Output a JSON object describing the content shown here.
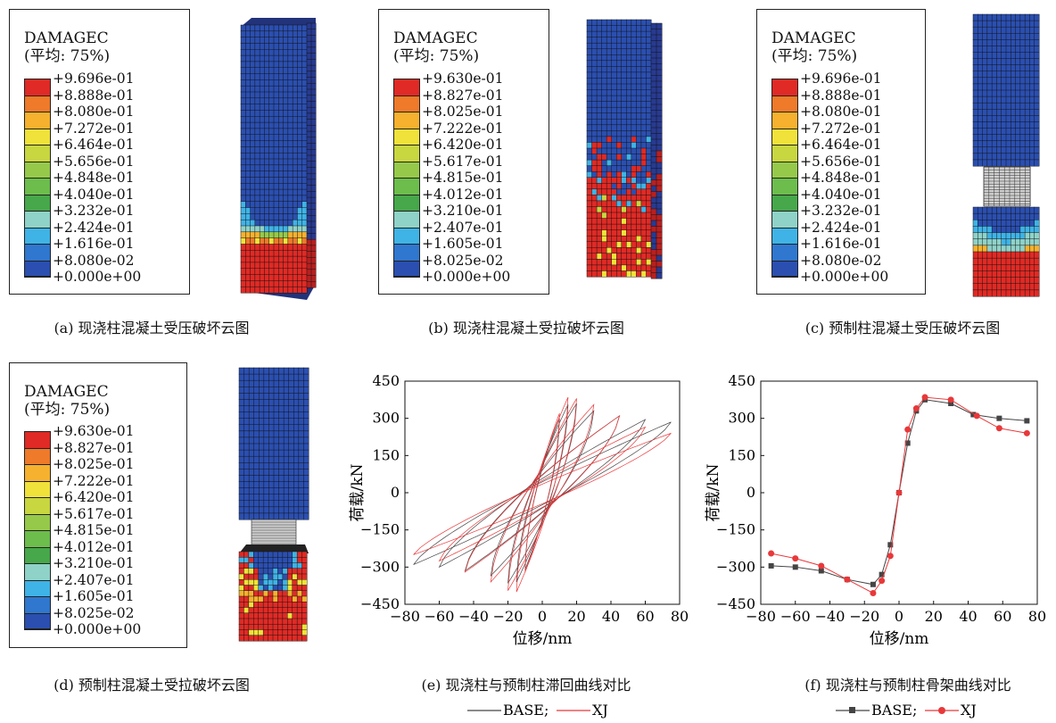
{
  "colors": {
    "contour": [
      "#2b4fb0",
      "#2f77cf",
      "#3fb3e6",
      "#8fd2c8",
      "#46a84a",
      "#6cbd4c",
      "#96c94a",
      "#c8d640",
      "#f0e23a",
      "#f6b12e",
      "#ee7a2a",
      "#e02a25"
    ],
    "series_base": "#444444",
    "series_xj": "#e8383a",
    "model_blue": "#3043a8",
    "model_red": "#d72a2a"
  },
  "panels": [
    {
      "legend_title": "DAMAGEC",
      "legend_subtitle": "(平均: 75%)",
      "ticks": [
        "+9.696e-01",
        "+8.888e-01",
        "+8.080e-01",
        "+7.272e-01",
        "+6.464e-01",
        "+5.656e-01",
        "+4.848e-01",
        "+4.040e-01",
        "+3.232e-01",
        "+2.424e-01",
        "+1.616e-01",
        "+8.080e-02",
        "+0.000e+00"
      ],
      "caption": "(a) 现浇柱混凝土受压破坏云图"
    },
    {
      "legend_title": "DAMAGEC",
      "legend_subtitle": "(平均: 75%)",
      "ticks": [
        "+9.630e-01",
        "+8.827e-01",
        "+8.025e-01",
        "+7.222e-01",
        "+6.420e-01",
        "+5.617e-01",
        "+4.815e-01",
        "+4.012e-01",
        "+3.210e-01",
        "+2.407e-01",
        "+1.605e-01",
        "+8.025e-02",
        "+0.000e+00"
      ],
      "caption": "(b) 现浇柱混凝土受拉破坏云图"
    },
    {
      "legend_title": "DAMAGEC",
      "legend_subtitle": "(平均: 75%)",
      "ticks": [
        "+9.696e-01",
        "+8.888e-01",
        "+8.080e-01",
        "+7.272e-01",
        "+6.464e-01",
        "+5.656e-01",
        "+4.848e-01",
        "+4.040e-01",
        "+3.232e-01",
        "+2.424e-01",
        "+1.616e-01",
        "+8.080e-02",
        "+0.000e+00"
      ],
      "caption": "(c) 预制柱混凝土受压破坏云图"
    },
    {
      "legend_title": "DAMAGEC",
      "legend_subtitle": "(平均: 75%)",
      "ticks": [
        "+9.630e-01",
        "+8.827e-01",
        "+8.025e-01",
        "+7.222e-01",
        "+6.420e-01",
        "+5.617e-01",
        "+4.815e-01",
        "+4.012e-01",
        "+3.210e-01",
        "+2.407e-01",
        "+1.605e-01",
        "+8.025e-02",
        "+0.000e+00"
      ],
      "caption": "(d) 预制柱混凝土受拉破坏云图"
    }
  ],
  "chart_data": [
    {
      "type": "line",
      "caption": "(e) 现浇柱与预制柱滞回曲线对比",
      "xlabel": "位移/nm",
      "ylabel": "荷载/kN",
      "xlim": [
        -80,
        80
      ],
      "ylim": [
        -450,
        450
      ],
      "xticks": [
        "−80",
        "−60",
        "−40",
        "−20",
        "0",
        "20",
        "40",
        "60",
        "80"
      ],
      "yticks": [
        "450",
        "300",
        "150",
        "0",
        "−150",
        "−300",
        "−450"
      ],
      "legend": [
        "BASE;",
        "XJ"
      ],
      "series": [
        {
          "name": "BASE",
          "loops": [
            {
              "amp_x": 10,
              "peak_y": 300,
              "min_y": -310
            },
            {
              "amp_x": 15,
              "peak_y": 355,
              "min_y": -360
            },
            {
              "amp_x": 20,
              "peak_y": 360,
              "min_y": -365
            },
            {
              "amp_x": 30,
              "peak_y": 330,
              "min_y": -335
            },
            {
              "amp_x": 45,
              "peak_y": 310,
              "min_y": -315
            },
            {
              "amp_x": 60,
              "peak_y": 295,
              "min_y": -300
            },
            {
              "amp_x": 75,
              "peak_y": 285,
              "min_y": -290
            }
          ]
        },
        {
          "name": "XJ",
          "loops": [
            {
              "amp_x": 10,
              "peak_y": 320,
              "min_y": -320
            },
            {
              "amp_x": 15,
              "peak_y": 385,
              "min_y": -400
            },
            {
              "amp_x": 20,
              "peak_y": 380,
              "min_y": -395
            },
            {
              "amp_x": 30,
              "peak_y": 355,
              "min_y": -360
            },
            {
              "amp_x": 45,
              "peak_y": 310,
              "min_y": -320
            },
            {
              "amp_x": 60,
              "peak_y": 265,
              "min_y": -275
            },
            {
              "amp_x": 75,
              "peak_y": 240,
              "min_y": -250
            }
          ]
        }
      ]
    },
    {
      "type": "line",
      "caption": "(f) 现浇柱与预制柱骨架曲线对比",
      "xlabel": "位移/nm",
      "ylabel": "荷载/kN",
      "xlim": [
        -80,
        80
      ],
      "ylim": [
        -450,
        450
      ],
      "xticks": [
        "−80",
        "−60",
        "−40",
        "−20",
        "0",
        "20",
        "40",
        "60",
        "80"
      ],
      "yticks": [
        "450",
        "300",
        "150",
        "0",
        "−150",
        "−300",
        "−450"
      ],
      "legend": [
        "BASE;",
        "XJ"
      ],
      "series": [
        {
          "name": "BASE",
          "marker": "square",
          "x": [
            -74,
            -60,
            -45,
            -30,
            -15,
            -10,
            -5,
            0,
            5,
            10,
            15,
            30,
            43,
            58,
            74
          ],
          "y": [
            -295,
            -300,
            -315,
            -350,
            -370,
            -330,
            -210,
            0,
            200,
            330,
            375,
            360,
            315,
            300,
            290
          ]
        },
        {
          "name": "XJ",
          "marker": "circle",
          "x": [
            -74,
            -60,
            -45,
            -30,
            -15,
            -10,
            -5,
            0,
            5,
            10,
            15,
            30,
            45,
            58,
            74
          ],
          "y": [
            -245,
            -265,
            -295,
            -350,
            -405,
            -355,
            -255,
            0,
            255,
            340,
            385,
            375,
            310,
            260,
            240
          ]
        }
      ]
    }
  ]
}
